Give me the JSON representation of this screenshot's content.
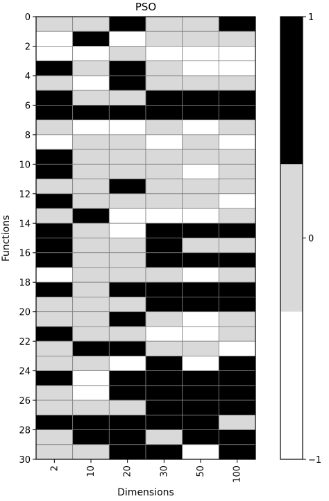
{
  "chart_data": {
    "type": "heatmap",
    "title": "PSO",
    "xlabel": "Dimensions",
    "ylabel": "Functions",
    "x_categories": [
      "2",
      "10",
      "20",
      "30",
      "50",
      "100"
    ],
    "y_range": [
      0,
      30
    ],
    "y_ticks": [
      "0",
      "2",
      "4",
      "6",
      "8",
      "10",
      "12",
      "14",
      "16",
      "18",
      "20",
      "22",
      "24",
      "26",
      "28",
      "30"
    ],
    "values": [
      [
        0,
        0,
        1,
        0,
        0,
        1
      ],
      [
        -1,
        1,
        -1,
        0,
        0,
        0
      ],
      [
        -1,
        -1,
        0,
        -1,
        -1,
        -1
      ],
      [
        1,
        0,
        1,
        0,
        -1,
        -1
      ],
      [
        0,
        -1,
        1,
        0,
        0,
        0
      ],
      [
        1,
        0,
        0,
        1,
        1,
        1
      ],
      [
        1,
        1,
        1,
        1,
        1,
        1
      ],
      [
        0,
        -1,
        -1,
        0,
        -1,
        0
      ],
      [
        -1,
        0,
        0,
        -1,
        0,
        -1
      ],
      [
        1,
        0,
        0,
        0,
        0,
        0
      ],
      [
        1,
        0,
        0,
        0,
        -1,
        0
      ],
      [
        0,
        0,
        1,
        0,
        0,
        0
      ],
      [
        1,
        0,
        0,
        0,
        0,
        -1
      ],
      [
        0,
        1,
        -1,
        -1,
        -1,
        0
      ],
      [
        1,
        0,
        -1,
        1,
        1,
        1
      ],
      [
        1,
        0,
        0,
        1,
        0,
        0
      ],
      [
        1,
        0,
        0,
        1,
        1,
        1
      ],
      [
        -1,
        0,
        0,
        0,
        -1,
        0
      ],
      [
        1,
        0,
        1,
        1,
        1,
        1
      ],
      [
        0,
        0,
        0,
        1,
        1,
        1
      ],
      [
        0,
        0,
        1,
        0,
        -1,
        0
      ],
      [
        1,
        0,
        0,
        -1,
        -1,
        0
      ],
      [
        0,
        1,
        1,
        0,
        0,
        -1
      ],
      [
        0,
        0,
        -1,
        1,
        -1,
        1
      ],
      [
        1,
        -1,
        1,
        1,
        1,
        1
      ],
      [
        0,
        -1,
        1,
        1,
        1,
        1
      ],
      [
        0,
        0,
        0,
        1,
        1,
        1
      ],
      [
        1,
        1,
        1,
        1,
        1,
        0
      ],
      [
        0,
        1,
        1,
        0,
        1,
        1
      ],
      [
        0,
        0,
        1,
        1,
        -1,
        1
      ]
    ],
    "colorbar": {
      "ticks": [
        "1",
        "0",
        "−1"
      ],
      "colors": {
        "1": "#000000",
        "0": "#d9d9d9",
        "-1": "#ffffff"
      }
    },
    "grid": true
  }
}
